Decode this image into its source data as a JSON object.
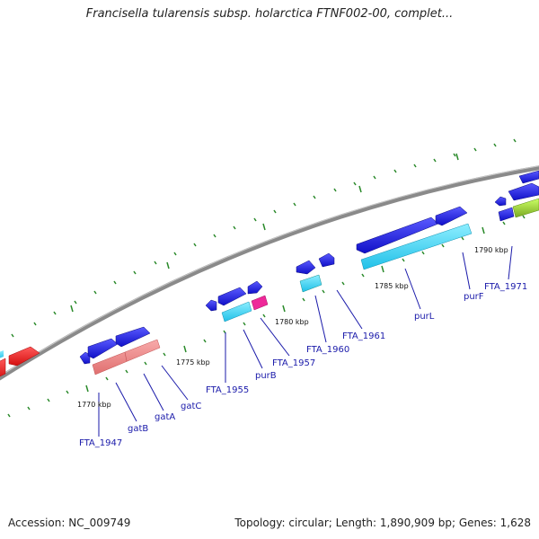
{
  "title": "Francisella tularensis subsp. holarctica FTNF002-00, complet...",
  "footer": {
    "accession": "Accession: NC_009749",
    "summary": "Topology: circular; Length: 1,890,909 bp; Genes: 1,628"
  },
  "colors": {
    "backbone": "#8a8a8a",
    "gene_blue": "#1c1ce6",
    "gene_cyan": "#3ed4f0",
    "gene_teal": "#2ac8c8",
    "gene_red": "#ee1a1a",
    "gene_salmon": "#f08888",
    "gene_pink": "#ee2899",
    "gene_green": "#99cc33",
    "tick_green": "#2a8a2a",
    "label_blue": "#1a1aaa"
  },
  "kbp_ticks": [
    "1770 kbp",
    "1775 kbp",
    "1780 kbp",
    "1785 kbp",
    "1790 kbp"
  ],
  "gene_labels": [
    "FTA_1947",
    "gatB",
    "gatA",
    "gatC",
    "FTA_1955",
    "purB",
    "FTA_1957",
    "FTA_1960",
    "FTA_1961",
    "purL",
    "purF",
    "FTA_1971"
  ]
}
